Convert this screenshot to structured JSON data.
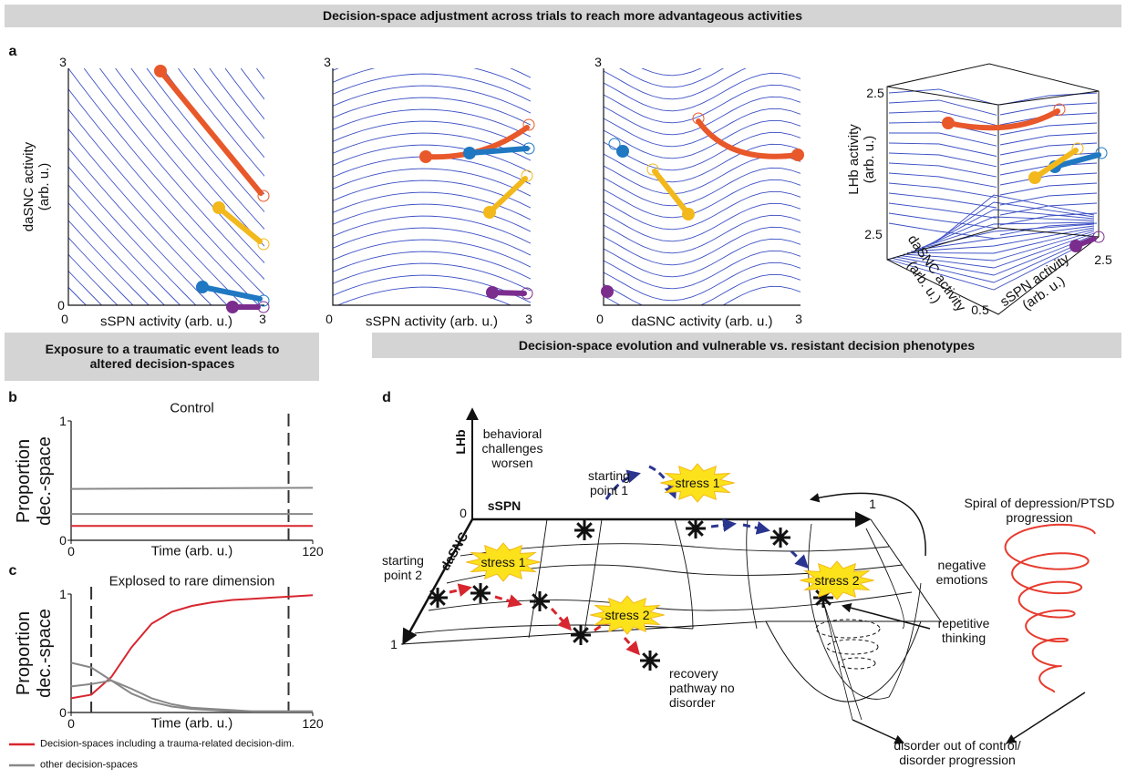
{
  "header": {
    "title": "Decision-space adjustment across trials to reach more advantageous activities"
  },
  "panel_a": {
    "label": "a",
    "plots": [
      {
        "xlabel": "sSPN activity (arb. u.)",
        "ylabel": "daSNC activity (arb. u.)",
        "x_ticks": [
          "0",
          "3"
        ],
        "y_ticks": [
          "3",
          "0"
        ]
      },
      {
        "xlabel": "sSPN activity (arb. u.)",
        "x_ticks": [
          "0",
          "3"
        ],
        "y_ticks": [
          "3"
        ]
      },
      {
        "xlabel": "daSNC activity (arb. u.)",
        "x_ticks": [
          "0",
          "3"
        ],
        "y_ticks": [
          "3"
        ]
      },
      {
        "zlabel": "LHb activity (arb. u.)",
        "xlabel": "daSNC activity (arb. u.)",
        "ylabel": "sSPN activity (arb. u.)",
        "ticks": [
          "2.5",
          "2.5",
          "0.5",
          "2.5"
        ]
      }
    ]
  },
  "section_bc": {
    "title": "Exposure to a traumatic event leads to altered decision-spaces"
  },
  "chart_data": [
    {
      "type": "line",
      "label": "b",
      "title": "Control",
      "ylabel": "Proportion dec.-space",
      "xlabel": "Time (arb. u.)",
      "x": [
        0,
        120
      ],
      "xlim": [
        0,
        120
      ],
      "ylim": [
        0,
        1
      ],
      "xticks": [
        0,
        120
      ],
      "yticks": [
        0,
        1
      ],
      "vlines": [
        108
      ],
      "series": [
        {
          "color": "#d7262f",
          "values": [
            0.12,
            0.12
          ]
        },
        {
          "color": "#888888",
          "values": [
            0.43,
            0.44
          ]
        },
        {
          "color": "#888888",
          "values": [
            0.22,
            0.22
          ]
        }
      ]
    },
    {
      "type": "line",
      "label": "c",
      "title": "Explosed to rare dimension",
      "ylabel": "Proportion dec.-space",
      "xlabel": "Time (arb. u.)",
      "x": [
        0,
        10,
        20,
        30,
        40,
        50,
        60,
        70,
        80,
        90,
        100,
        110,
        120
      ],
      "xlim": [
        0,
        120
      ],
      "ylim": [
        0,
        1
      ],
      "xticks": [
        0,
        120
      ],
      "yticks": [
        0,
        1
      ],
      "vlines": [
        10,
        108
      ],
      "series": [
        {
          "name": "Decision-spaces including a trauma-related decision-dim.",
          "color": "#d7262f",
          "values": [
            0.12,
            0.15,
            0.3,
            0.55,
            0.75,
            0.85,
            0.9,
            0.93,
            0.95,
            0.96,
            0.97,
            0.98,
            0.99
          ]
        },
        {
          "name": "other decision-spaces",
          "color": "#888888",
          "values": [
            0.42,
            0.38,
            0.27,
            0.16,
            0.09,
            0.05,
            0.03,
            0.02,
            0.01,
            0.01,
            0.01,
            0.01,
            0.01
          ]
        },
        {
          "color": "#888888",
          "values": [
            0.22,
            0.24,
            0.27,
            0.2,
            0.12,
            0.07,
            0.04,
            0.03,
            0.02,
            0.01,
            0.01,
            0.01,
            0.01
          ]
        }
      ]
    }
  ],
  "panel_d": {
    "label": "d",
    "title": "Decision-space evolution and vulnerable vs. resistant decision phenotypes",
    "texts": [
      "LHb",
      "behavioral challenges worsen",
      "starting point 1",
      "sSPN",
      "0",
      "1",
      "daSNC",
      "starting point 2",
      "1",
      "stress 1",
      "stress 1",
      "stress 2",
      "stress 2",
      "recovery pathway no disorder",
      "Spiral of depression/PTSD progression",
      "negative emotions",
      "repetitive thinking",
      "disorder out of control/ disorder progression"
    ]
  }
}
